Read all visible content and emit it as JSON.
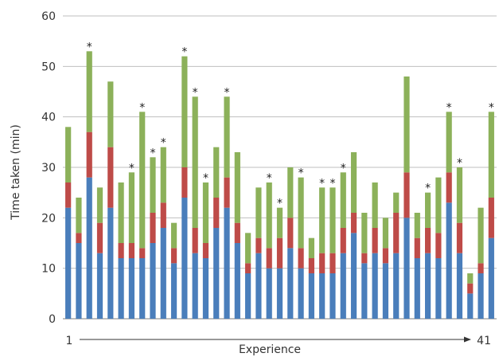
{
  "chart_data": {
    "type": "bar",
    "stacked": true,
    "title": "",
    "xlabel": "Experience",
    "ylabel": "Time taken (min)",
    "ylim": [
      0,
      60
    ],
    "yticks": [
      0,
      10,
      20,
      30,
      40,
      50,
      60
    ],
    "grid": true,
    "x_start_label": "1",
    "x_end_label": "41",
    "categories": [
      1,
      2,
      3,
      4,
      5,
      6,
      7,
      8,
      9,
      10,
      11,
      12,
      13,
      14,
      15,
      16,
      17,
      18,
      19,
      20,
      21,
      22,
      23,
      24,
      25,
      26,
      27,
      28,
      29,
      30,
      31,
      32,
      33,
      34,
      35,
      36,
      37,
      38,
      39,
      40,
      41
    ],
    "colors": [
      "#4a7ebb",
      "#be4b48",
      "#8cb15a"
    ],
    "series": [
      {
        "values": [
          22,
          15,
          28,
          13,
          22,
          12,
          12,
          12,
          15,
          18,
          11,
          24,
          13,
          12,
          18,
          22,
          15,
          9,
          13,
          10,
          10,
          14,
          10,
          9,
          9,
          9,
          13,
          17,
          11,
          13,
          11,
          13,
          20,
          12,
          13,
          12,
          23,
          13,
          5,
          9,
          16
        ]
      },
      {
        "values": [
          5,
          2,
          9,
          6,
          12,
          3,
          3,
          2,
          6,
          5,
          3,
          6,
          5,
          3,
          6,
          6,
          4,
          2,
          3,
          4,
          6,
          6,
          4,
          3,
          4,
          4,
          5,
          4,
          2,
          5,
          3,
          8,
          9,
          4,
          5,
          5,
          6,
          6,
          2,
          2,
          8
        ]
      },
      {
        "values": [
          11,
          7,
          16,
          7,
          13,
          12,
          14,
          27,
          11,
          11,
          5,
          22,
          26,
          12,
          10,
          16,
          14,
          6,
          10,
          13,
          6,
          10,
          14,
          4,
          13,
          13,
          11,
          12,
          8,
          9,
          6,
          4,
          19,
          5,
          7,
          11,
          12,
          11,
          2,
          11,
          17
        ]
      }
    ],
    "annotations": {
      "marker": "*",
      "bars": [
        3,
        7,
        8,
        9,
        10,
        12,
        13,
        14,
        16,
        20,
        21,
        23,
        25,
        26,
        27,
        35,
        37,
        38,
        41
      ]
    }
  }
}
